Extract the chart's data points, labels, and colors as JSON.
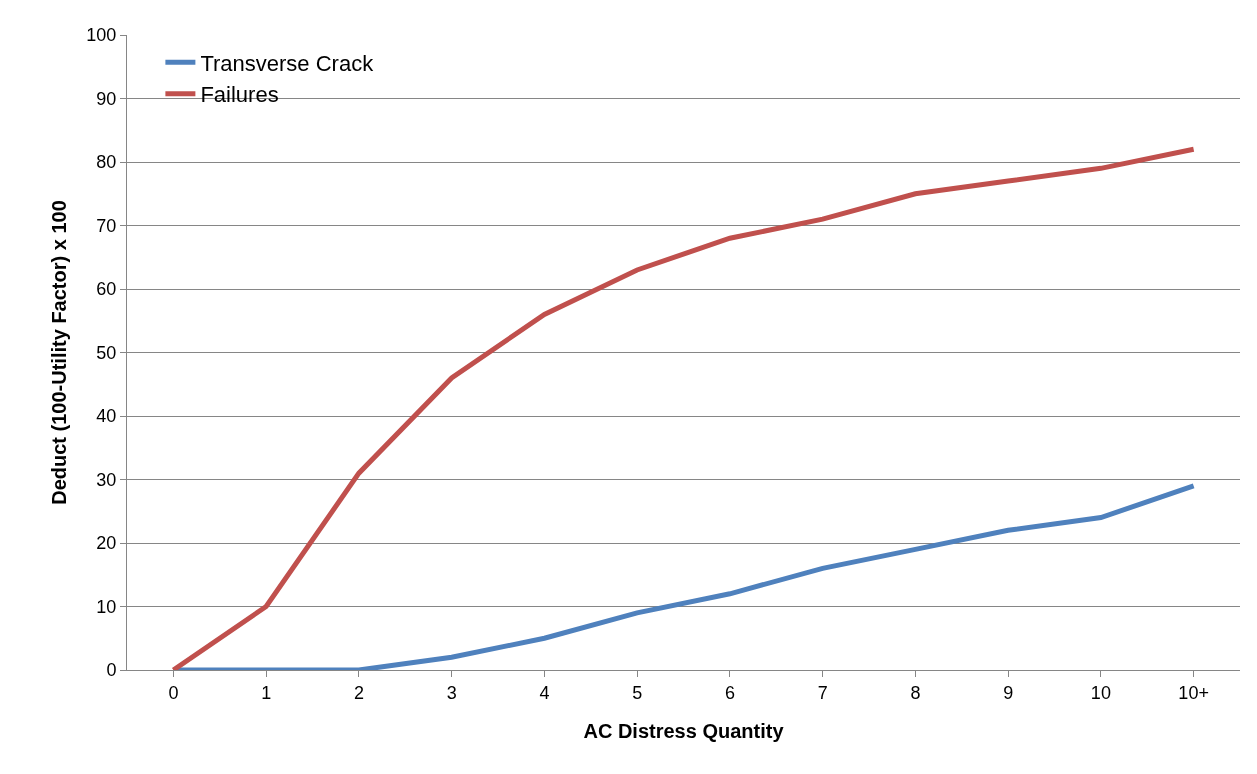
{
  "chart_data": {
    "type": "line",
    "xlabel": "AC Distress Quantity",
    "ylabel": "Deduct (100-Utility Factor) x 100",
    "categories": [
      "0",
      "1",
      "2",
      "3",
      "4",
      "5",
      "6",
      "7",
      "8",
      "9",
      "10",
      "10+"
    ],
    "series": [
      {
        "name": "Transverse Crack",
        "color": "#4f81bd",
        "values": [
          0,
          0,
          0,
          2,
          5,
          9,
          12,
          16,
          19,
          22,
          24,
          29
        ]
      },
      {
        "name": "Failures",
        "color": "#c0504d",
        "values": [
          0,
          10,
          31,
          46,
          56,
          63,
          68,
          71,
          75,
          77,
          79,
          82
        ]
      }
    ],
    "ylim": [
      0,
      100
    ],
    "yticks": [
      0,
      10,
      20,
      30,
      40,
      50,
      60,
      70,
      80,
      90,
      100
    ],
    "grid": "y",
    "legend": "top left",
    "marker": "none",
    "line_style": "solid"
  }
}
